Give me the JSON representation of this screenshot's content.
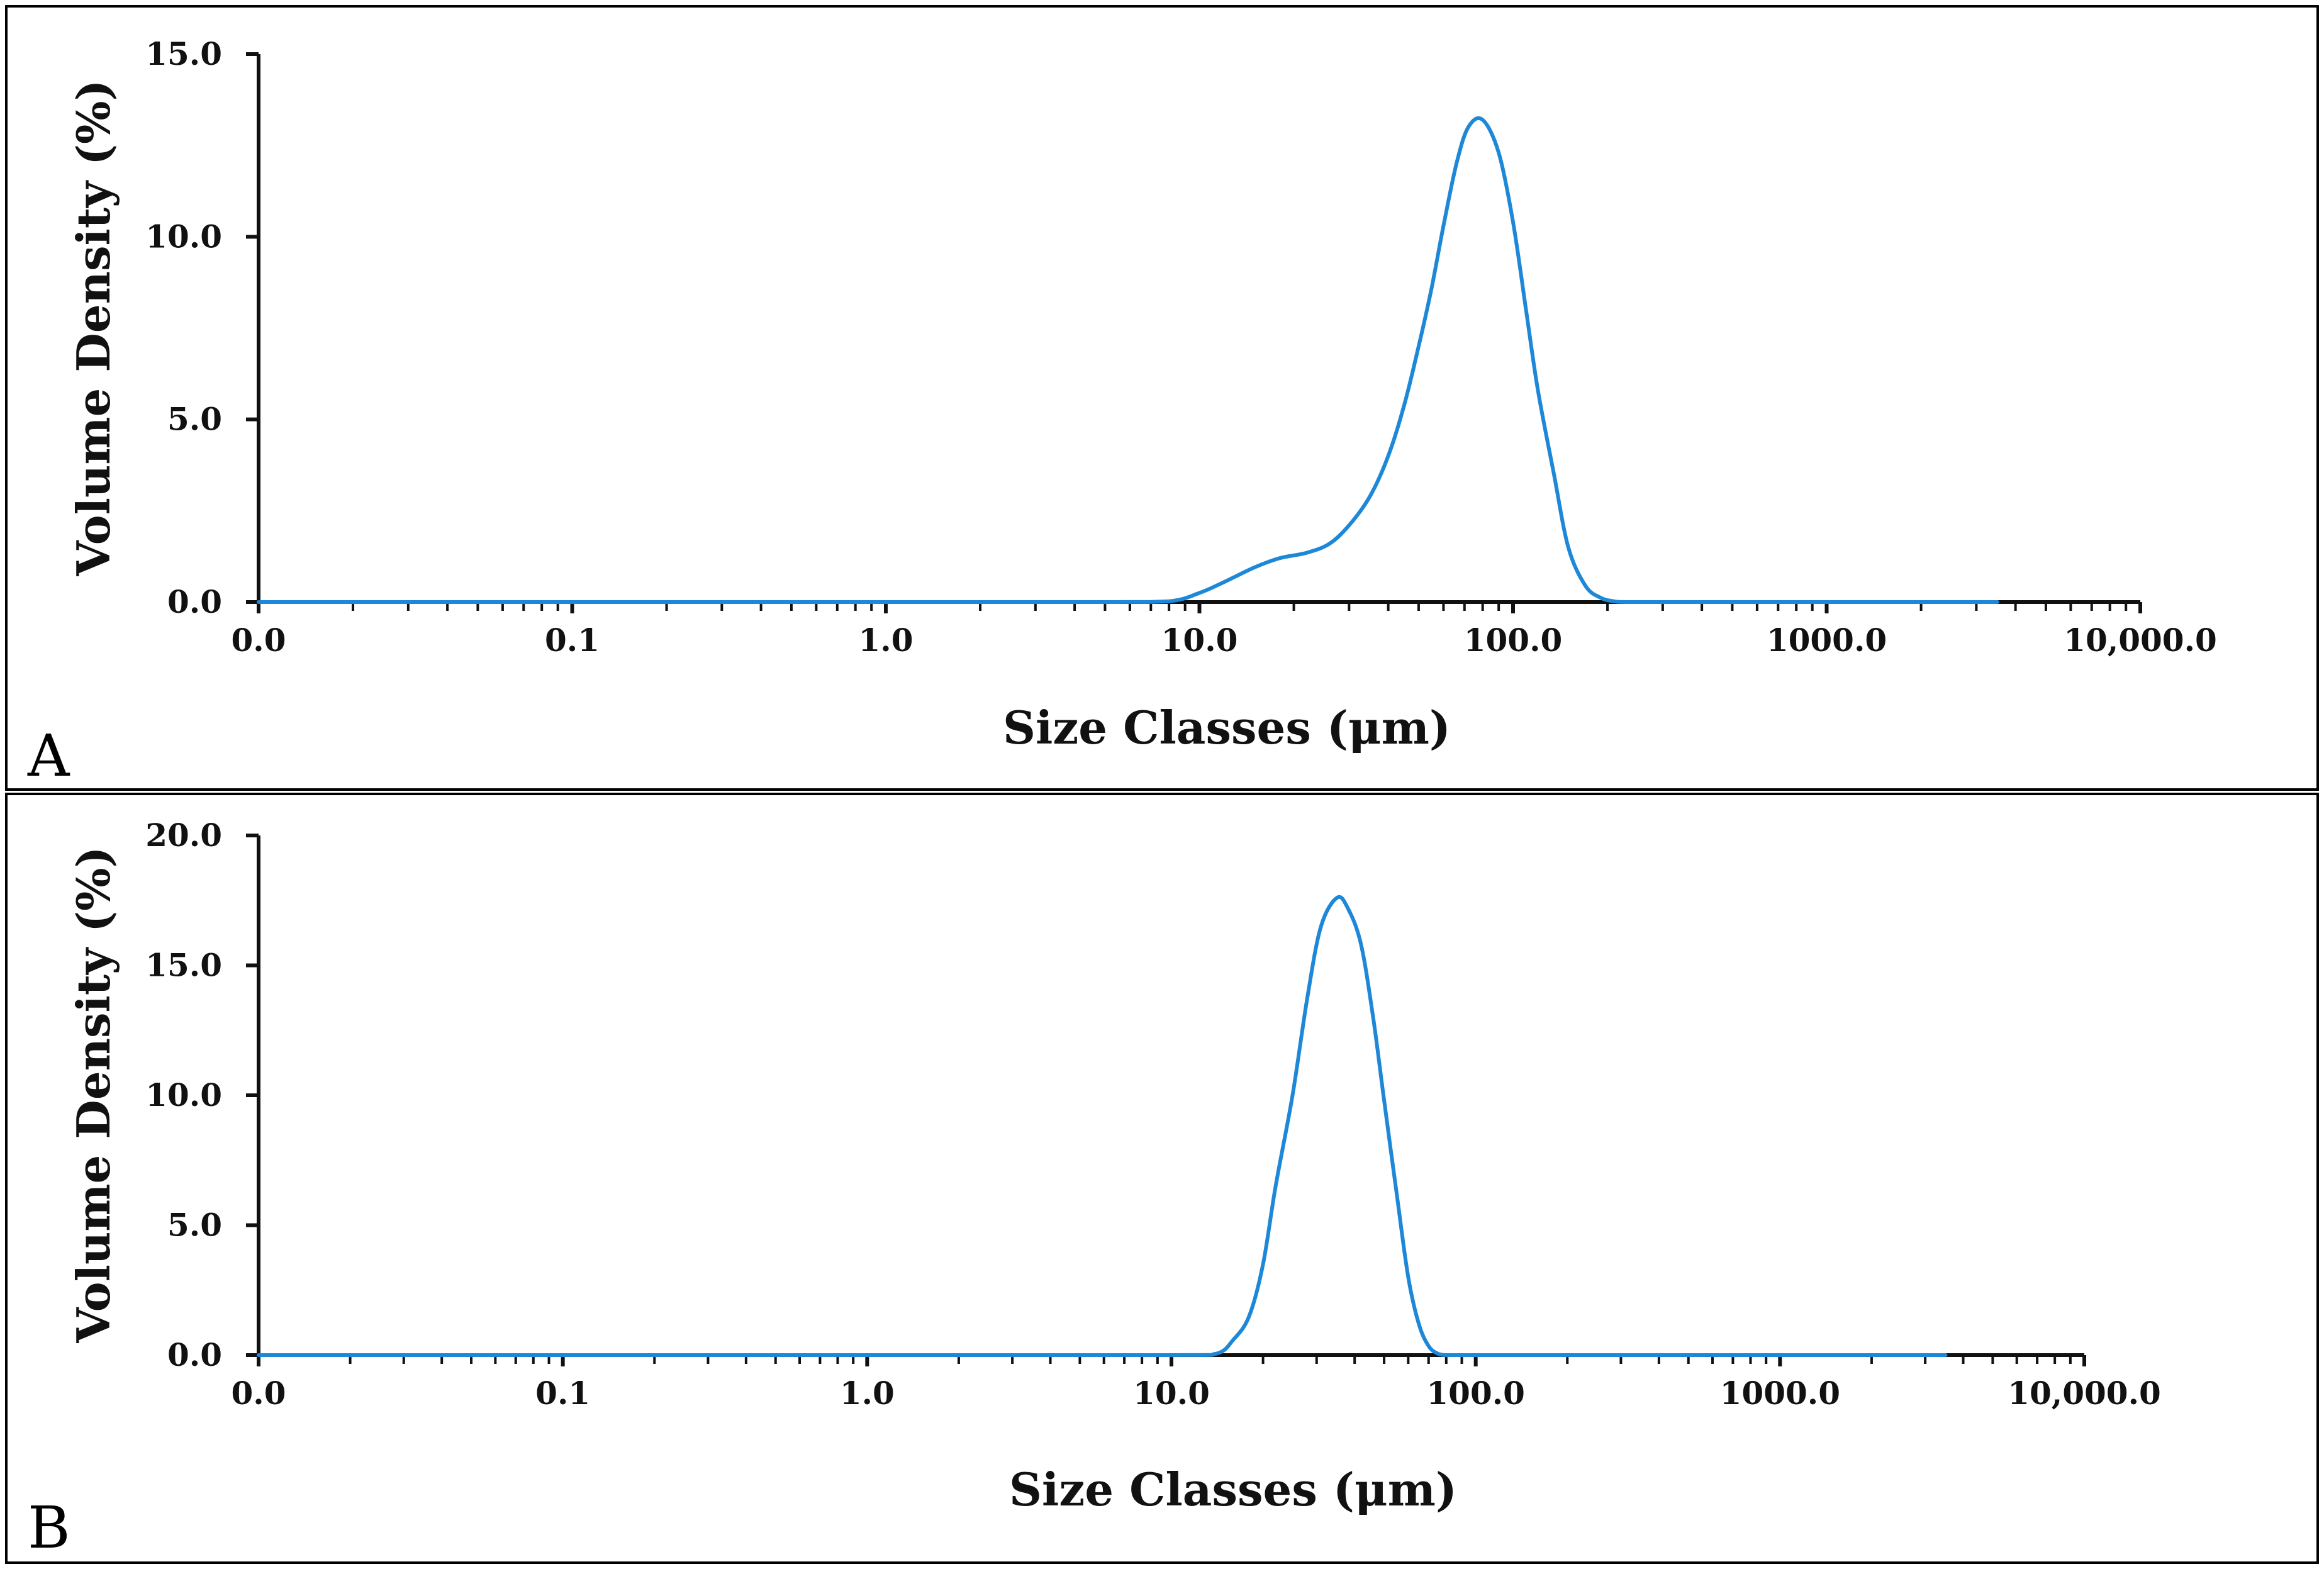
{
  "figure_title": "",
  "chart_data": [
    {
      "panel": "A",
      "type": "line",
      "title": "",
      "xlabel": "Size Classes (μm)",
      "ylabel": "Volume Density (%)",
      "xscale": "log",
      "xlim": [
        0.01,
        10000
      ],
      "ylim": [
        0,
        15
      ],
      "x_ticks": [
        0.01,
        0.1,
        1,
        10,
        100,
        1000,
        10000
      ],
      "x_tick_labels": [
        "0.0",
        "0.1",
        "1.0",
        "10.0",
        "100.0",
        "1000.0",
        "10,000.0"
      ],
      "y_ticks": [
        0,
        5,
        10,
        15
      ],
      "y_tick_labels": [
        "0.0",
        "5.0",
        "10.0",
        "15.0"
      ],
      "grid": false,
      "color": "#1e88d8",
      "series": [
        {
          "name": "A",
          "x": [
            0.01,
            0.1,
            1,
            5,
            8,
            10,
            12,
            15,
            18,
            22,
            26,
            30,
            35,
            40,
            45,
            50,
            55,
            60,
            66,
            72,
            80,
            90,
            100,
            110,
            120,
            135,
            150,
            170,
            190,
            210,
            230,
            300,
            1000,
            3500
          ],
          "y": [
            0,
            0,
            0,
            0,
            0.02,
            0.25,
            0.55,
            0.95,
            1.2,
            1.35,
            1.6,
            2.1,
            2.9,
            4.0,
            5.4,
            7.0,
            8.6,
            10.3,
            12.0,
            13.0,
            13.2,
            12.3,
            10.4,
            8.0,
            5.8,
            3.5,
            1.5,
            0.45,
            0.12,
            0.02,
            0,
            0,
            0,
            0
          ]
        }
      ],
      "panel_label": "A"
    },
    {
      "panel": "B",
      "type": "line",
      "title": "",
      "xlabel": "Size Classes (μm)",
      "ylabel": "Volume Density (%)",
      "xscale": "log",
      "xlim": [
        0.01,
        10000
      ],
      "ylim": [
        0,
        20
      ],
      "x_ticks": [
        0.01,
        0.1,
        1,
        10,
        100,
        1000,
        10000
      ],
      "x_tick_labels": [
        "0.0",
        "0.1",
        "1.0",
        "10.0",
        "100.0",
        "1000.0",
        "10,000.0"
      ],
      "y_ticks": [
        0,
        5,
        10,
        15,
        20
      ],
      "y_tick_labels": [
        "0.0",
        "5.0",
        "10.0",
        "15.0",
        "20.0"
      ],
      "grid": false,
      "color": "#1e88d8",
      "series": [
        {
          "name": "B",
          "x": [
            0.01,
            0.1,
            1,
            10,
            14,
            16,
            18,
            20,
            22,
            25,
            28,
            31,
            35,
            38,
            42,
            46,
            50,
            55,
            60,
            65,
            70,
            75,
            80,
            85,
            100,
            1000,
            3500
          ],
          "y": [
            0,
            0,
            0,
            0,
            0.05,
            0.6,
            1.5,
            3.5,
            6.5,
            10.0,
            13.8,
            16.5,
            17.6,
            17.2,
            15.8,
            13.0,
            9.8,
            6.2,
            3.0,
            1.2,
            0.35,
            0.06,
            0,
            0,
            0,
            0,
            0
          ]
        }
      ],
      "panel_label": "B"
    }
  ]
}
